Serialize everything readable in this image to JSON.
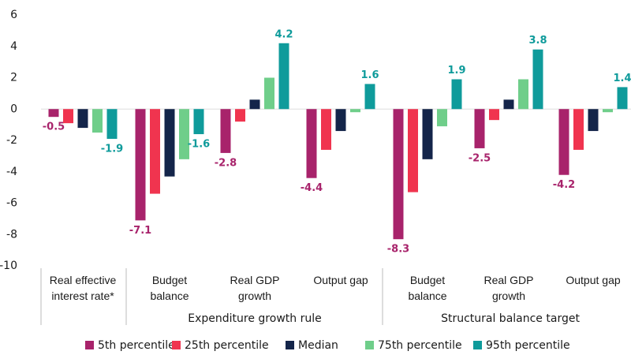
{
  "chart_data": {
    "type": "bar",
    "categories": [
      "Real effective interest rate*",
      "Budget balance",
      "Real GDP growth",
      "Output gap",
      "Budget balance",
      "Real GDP growth",
      "Output gap"
    ],
    "group_labels": [
      "Expenditure growth rule",
      "Structural balance target"
    ],
    "series": [
      {
        "name": "5th percentile",
        "color": "#a8236b",
        "show_labels": true,
        "values": [
          -0.5,
          -7.1,
          -2.8,
          -4.4,
          -8.3,
          -2.5,
          -4.2
        ]
      },
      {
        "name": "25th percentile",
        "color": "#f0344f",
        "show_labels": false,
        "values": [
          -0.9,
          -5.4,
          -0.8,
          -2.6,
          -5.3,
          -0.7,
          -2.6
        ]
      },
      {
        "name": "Median",
        "color": "#14254a",
        "show_labels": false,
        "values": [
          -1.2,
          -4.3,
          0.6,
          -1.4,
          -3.2,
          0.6,
          -1.4
        ]
      },
      {
        "name": "75th percentile",
        "color": "#6fce8a",
        "show_labels": false,
        "values": [
          -1.5,
          -3.2,
          2.0,
          -0.2,
          -1.1,
          1.9,
          -0.2
        ]
      },
      {
        "name": "95th percentile",
        "color": "#0f9b9b",
        "show_labels": true,
        "values": [
          -1.9,
          -1.6,
          4.2,
          1.6,
          1.9,
          3.8,
          1.4
        ]
      }
    ],
    "ylim": [
      -10,
      6
    ],
    "yticks": [
      -10,
      -8,
      -6,
      -4,
      -2,
      0,
      2,
      4,
      6
    ],
    "grid": false,
    "legend": "bottom"
  }
}
